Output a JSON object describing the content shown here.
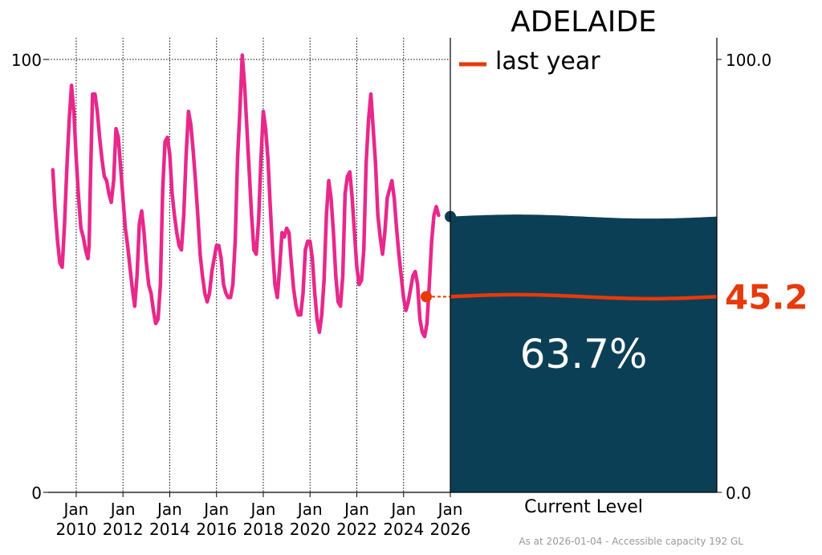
{
  "chart_data": {
    "type": "line",
    "title": "ADELAIDE",
    "legend": {
      "label": "last year",
      "placement": "top-right"
    },
    "left_axis": {
      "ylim": [
        0,
        100
      ],
      "ticks": [
        "0",
        "100"
      ]
    },
    "right_axis": {
      "ylim": [
        0,
        100
      ],
      "ticks": [
        "0.0",
        "100.0"
      ]
    },
    "x_ticks": [
      {
        "line1": "Jan",
        "line2": "2010"
      },
      {
        "line1": "Jan",
        "line2": "2012"
      },
      {
        "line1": "Jan",
        "line2": "2014"
      },
      {
        "line1": "Jan",
        "line2": "2016"
      },
      {
        "line1": "Jan",
        "line2": "2018"
      },
      {
        "line1": "Jan",
        "line2": "2020"
      },
      {
        "line1": "Jan",
        "line2": "2022"
      },
      {
        "line1": "Jan",
        "line2": "2024"
      },
      {
        "line1": "Jan",
        "line2": "2026"
      }
    ],
    "xlim": [
      2008.8,
      2026.0
    ],
    "grid": "vertical dotted at ticks, horizontal dotted at 100",
    "series": [
      {
        "color": "#e8288a",
        "points": [
          [
            2009.0,
            74.5
          ],
          [
            2009.1,
            65
          ],
          [
            2009.2,
            58
          ],
          [
            2009.3,
            53
          ],
          [
            2009.4,
            52
          ],
          [
            2009.5,
            62
          ],
          [
            2009.6,
            75
          ],
          [
            2009.7,
            86
          ],
          [
            2009.8,
            94
          ],
          [
            2009.9,
            88
          ],
          [
            2010.0,
            77
          ],
          [
            2010.1,
            68
          ],
          [
            2010.2,
            61
          ],
          [
            2010.3,
            59
          ],
          [
            2010.4,
            56
          ],
          [
            2010.5,
            54
          ],
          [
            2010.55,
            57
          ],
          [
            2010.6,
            70
          ],
          [
            2010.7,
            92
          ],
          [
            2010.8,
            92
          ],
          [
            2010.9,
            88
          ],
          [
            2011.0,
            82
          ],
          [
            2011.1,
            77
          ],
          [
            2011.2,
            73
          ],
          [
            2011.3,
            72
          ],
          [
            2011.4,
            69
          ],
          [
            2011.5,
            67
          ],
          [
            2011.6,
            72
          ],
          [
            2011.7,
            84
          ],
          [
            2011.8,
            82
          ],
          [
            2011.9,
            75
          ],
          [
            2012.0,
            68
          ],
          [
            2012.1,
            61
          ],
          [
            2012.2,
            57
          ],
          [
            2012.3,
            52
          ],
          [
            2012.4,
            47
          ],
          [
            2012.5,
            43
          ],
          [
            2012.6,
            50
          ],
          [
            2012.7,
            62
          ],
          [
            2012.8,
            65
          ],
          [
            2012.9,
            60
          ],
          [
            2013.0,
            53
          ],
          [
            2013.1,
            48
          ],
          [
            2013.2,
            46
          ],
          [
            2013.3,
            42
          ],
          [
            2013.4,
            39
          ],
          [
            2013.5,
            40
          ],
          [
            2013.6,
            48
          ],
          [
            2013.7,
            70
          ],
          [
            2013.8,
            81
          ],
          [
            2013.9,
            82
          ],
          [
            2014.0,
            78
          ],
          [
            2014.1,
            69
          ],
          [
            2014.2,
            64
          ],
          [
            2014.3,
            60
          ],
          [
            2014.4,
            57
          ],
          [
            2014.5,
            56
          ],
          [
            2014.6,
            64
          ],
          [
            2014.7,
            78
          ],
          [
            2014.8,
            88
          ],
          [
            2014.9,
            85
          ],
          [
            2015.0,
            79
          ],
          [
            2015.1,
            72
          ],
          [
            2015.2,
            64
          ],
          [
            2015.3,
            55
          ],
          [
            2015.4,
            50
          ],
          [
            2015.5,
            46
          ],
          [
            2015.6,
            44
          ],
          [
            2015.7,
            46
          ],
          [
            2015.8,
            51
          ],
          [
            2015.9,
            54
          ],
          [
            2016.0,
            57
          ],
          [
            2016.1,
            57
          ],
          [
            2016.2,
            54
          ],
          [
            2016.3,
            48
          ],
          [
            2016.4,
            46
          ],
          [
            2016.5,
            45
          ],
          [
            2016.6,
            45
          ],
          [
            2016.7,
            48
          ],
          [
            2016.8,
            58
          ],
          [
            2016.9,
            77
          ],
          [
            2017.0,
            88
          ],
          [
            2017.1,
            101
          ],
          [
            2017.2,
            94
          ],
          [
            2017.3,
            84
          ],
          [
            2017.4,
            74
          ],
          [
            2017.5,
            64
          ],
          [
            2017.6,
            56
          ],
          [
            2017.7,
            55
          ],
          [
            2017.8,
            63
          ],
          [
            2017.9,
            77
          ],
          [
            2018.0,
            88
          ],
          [
            2018.1,
            84
          ],
          [
            2018.2,
            77
          ],
          [
            2018.3,
            66
          ],
          [
            2018.4,
            56
          ],
          [
            2018.5,
            48
          ],
          [
            2018.6,
            45
          ],
          [
            2018.7,
            52
          ],
          [
            2018.8,
            60
          ],
          [
            2018.9,
            59
          ],
          [
            2019.0,
            61
          ],
          [
            2019.1,
            60
          ],
          [
            2019.2,
            53
          ],
          [
            2019.3,
            47
          ],
          [
            2019.4,
            43
          ],
          [
            2019.5,
            41
          ],
          [
            2019.6,
            41
          ],
          [
            2019.7,
            46
          ],
          [
            2019.8,
            56
          ],
          [
            2019.9,
            58
          ],
          [
            2020.0,
            58
          ],
          [
            2020.1,
            54
          ],
          [
            2020.2,
            46
          ],
          [
            2020.3,
            40
          ],
          [
            2020.4,
            37
          ],
          [
            2020.5,
            41
          ],
          [
            2020.6,
            49
          ],
          [
            2020.7,
            64
          ],
          [
            2020.8,
            72
          ],
          [
            2020.9,
            68
          ],
          [
            2021.0,
            60
          ],
          [
            2021.1,
            50
          ],
          [
            2021.2,
            44
          ],
          [
            2021.3,
            43
          ],
          [
            2021.4,
            50
          ],
          [
            2021.5,
            69
          ],
          [
            2021.6,
            73
          ],
          [
            2021.7,
            74
          ],
          [
            2021.8,
            68
          ],
          [
            2021.9,
            60
          ],
          [
            2022.0,
            52
          ],
          [
            2022.1,
            48
          ],
          [
            2022.2,
            49
          ],
          [
            2022.3,
            56
          ],
          [
            2022.4,
            76
          ],
          [
            2022.5,
            86
          ],
          [
            2022.6,
            92
          ],
          [
            2022.7,
            84
          ],
          [
            2022.8,
            76
          ],
          [
            2022.9,
            64
          ],
          [
            2023.0,
            59
          ],
          [
            2023.1,
            55
          ],
          [
            2023.2,
            60
          ],
          [
            2023.3,
            68
          ],
          [
            2023.4,
            70
          ],
          [
            2023.5,
            72
          ],
          [
            2023.6,
            68
          ],
          [
            2023.7,
            61
          ],
          [
            2023.8,
            55
          ],
          [
            2023.9,
            50
          ],
          [
            2024.0,
            45
          ],
          [
            2024.1,
            42
          ],
          [
            2024.2,
            44
          ],
          [
            2024.3,
            47
          ],
          [
            2024.4,
            50
          ],
          [
            2024.5,
            51
          ],
          [
            2024.6,
            48
          ],
          [
            2024.7,
            40
          ],
          [
            2024.8,
            37
          ],
          [
            2024.9,
            36
          ],
          [
            2025.0,
            39
          ],
          [
            2025.1,
            48
          ],
          [
            2025.2,
            58
          ],
          [
            2025.3,
            64
          ],
          [
            2025.4,
            66
          ],
          [
            2025.5,
            64
          ]
        ]
      }
    ],
    "last_year_marker": {
      "x": 2024.97,
      "y": 45.2,
      "color": "#e63a0a"
    },
    "current_marker": {
      "x": 2025.85,
      "y": 63.7,
      "color": "#0b3f56"
    },
    "current_level": {
      "label": "Current Level",
      "percent_text": "63.7%",
      "value": 63.7,
      "fill_color": "#0b3f56",
      "last_year_value": 45.2,
      "last_year_text": "45.2",
      "last_year_color": "#e63a0a"
    },
    "footnote": "As at 2026-01-04 - Accessible capacity 192 GL"
  }
}
